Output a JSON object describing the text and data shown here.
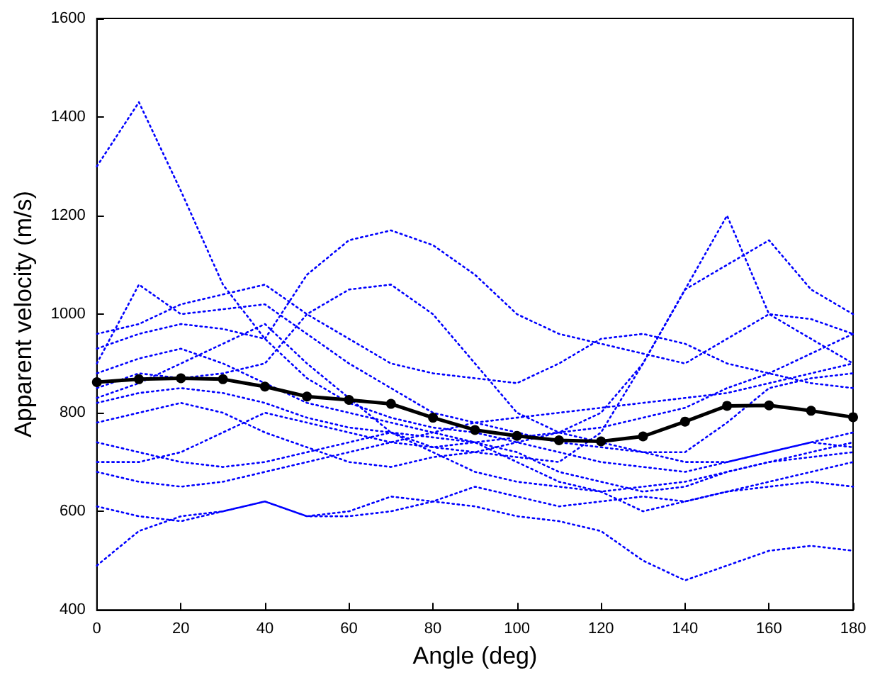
{
  "chart_data": {
    "type": "line",
    "xlabel": "Angle (deg)",
    "ylabel": "Apparent velocity (m/s)",
    "x": [
      0,
      10,
      20,
      30,
      40,
      50,
      60,
      70,
      80,
      90,
      100,
      110,
      120,
      130,
      140,
      150,
      160,
      170,
      180
    ],
    "xlim": [
      0,
      180
    ],
    "xticks": [
      0,
      20,
      40,
      60,
      80,
      100,
      120,
      140,
      160,
      180
    ],
    "ylim": [
      400,
      1600
    ],
    "yticks": [
      400,
      600,
      800,
      1000,
      1200,
      1400,
      1600
    ],
    "grid": false,
    "series": [
      {
        "color": "#0000ff",
        "marker": "none",
        "line_style": "dotted",
        "values": [
          1300,
          1430,
          1250,
          1060,
          950,
          870,
          820,
          790,
          770,
          760,
          740,
          720,
          700,
          690,
          680,
          700,
          720,
          740,
          730
        ]
      },
      {
        "color": "#0000ff",
        "marker": "none",
        "line_style": "dotted",
        "values": [
          490,
          560,
          590,
          600,
          620,
          590,
          600,
          630,
          620,
          610,
          590,
          580,
          560,
          500,
          460,
          490,
          520,
          530,
          520
        ]
      },
      {
        "color": "#0000ff",
        "marker": "none",
        "line_style": "dotted",
        "values": [
          610,
          590,
          580,
          600,
          620,
          590,
          590,
          600,
          620,
          650,
          630,
          610,
          620,
          630,
          620,
          640,
          650,
          660,
          650
        ]
      },
      {
        "color": "#0000ff",
        "marker": "none",
        "line_style": "dotted",
        "values": [
          930,
          960,
          980,
          970,
          950,
          1080,
          1150,
          1170,
          1140,
          1080,
          1000,
          960,
          940,
          920,
          900,
          950,
          1000,
          990,
          960
        ]
      },
      {
        "color": "#0000ff",
        "marker": "none",
        "line_style": "dotted",
        "values": [
          850,
          880,
          870,
          880,
          900,
          1000,
          1050,
          1060,
          1000,
          900,
          800,
          760,
          740,
          720,
          720,
          780,
          850,
          870,
          880
        ]
      },
      {
        "color": "#0000ff",
        "marker": "none",
        "line_style": "dotted",
        "values": [
          780,
          800,
          820,
          800,
          760,
          730,
          700,
          690,
          710,
          720,
          710,
          700,
          760,
          900,
          1050,
          1200,
          1000,
          950,
          900
        ]
      },
      {
        "color": "#0000ff",
        "marker": "none",
        "line_style": "dotted",
        "values": [
          830,
          860,
          900,
          940,
          980,
          900,
          830,
          760,
          730,
          720,
          740,
          760,
          800,
          900,
          1050,
          1100,
          1150,
          1050,
          1000
        ]
      },
      {
        "color": "#0000ff",
        "marker": "none",
        "line_style": "dotted",
        "values": [
          900,
          1060,
          1000,
          1010,
          1020,
          960,
          900,
          850,
          800,
          780,
          760,
          740,
          730,
          720,
          700,
          700,
          720,
          740,
          760
        ]
      },
      {
        "color": "#0000ff",
        "marker": "none",
        "line_style": "dotted",
        "values": [
          960,
          980,
          1020,
          1040,
          1060,
          1000,
          950,
          900,
          880,
          870,
          860,
          900,
          950,
          960,
          940,
          900,
          880,
          860,
          850
        ]
      },
      {
        "color": "#0000ff",
        "marker": "none",
        "line_style": "dotted",
        "values": [
          700,
          700,
          720,
          760,
          800,
          780,
          760,
          740,
          730,
          740,
          700,
          660,
          640,
          650,
          660,
          680,
          700,
          710,
          720
        ]
      },
      {
        "color": "#0000ff",
        "marker": "none",
        "line_style": "dotted",
        "values": [
          680,
          660,
          650,
          660,
          680,
          700,
          720,
          740,
          760,
          780,
          790,
          800,
          810,
          820,
          830,
          840,
          860,
          880,
          900
        ]
      },
      {
        "color": "#0000ff",
        "marker": "none",
        "line_style": "dotted",
        "values": [
          740,
          720,
          700,
          690,
          700,
          720,
          740,
          760,
          720,
          680,
          660,
          650,
          640,
          600,
          620,
          640,
          660,
          680,
          700
        ]
      },
      {
        "color": "#0000ff",
        "marker": "none",
        "line_style": "dotted",
        "values": [
          820,
          840,
          850,
          840,
          820,
          790,
          770,
          760,
          750,
          740,
          750,
          760,
          770,
          790,
          810,
          850,
          880,
          920,
          960
        ]
      },
      {
        "color": "#0000ff",
        "marker": "none",
        "line_style": "dotted",
        "values": [
          880,
          910,
          930,
          900,
          860,
          820,
          800,
          780,
          760,
          740,
          720,
          680,
          660,
          640,
          650,
          680,
          700,
          720,
          740
        ]
      },
      {
        "color": "#000000",
        "marker": "circle",
        "line_style": "solid",
        "values": [
          862,
          868,
          870,
          868,
          853,
          833,
          826,
          818,
          790,
          765,
          753,
          744,
          742,
          752,
          782,
          814,
          815,
          804,
          791
        ]
      }
    ]
  }
}
